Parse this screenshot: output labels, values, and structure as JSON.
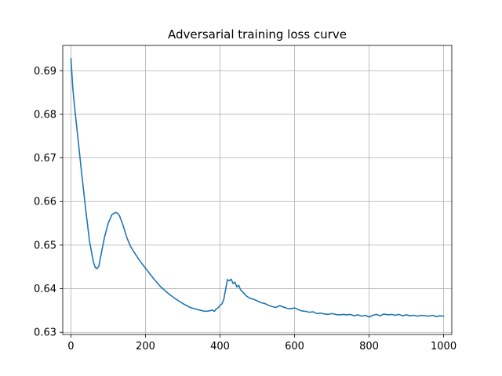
{
  "chart_data": {
    "type": "line",
    "title": "Adversarial training loss curve",
    "xlabel": "",
    "ylabel": "",
    "xlim": [
      -22,
      1022
    ],
    "ylim": [
      0.6295,
      0.6958
    ],
    "xticks": [
      0,
      200,
      400,
      600,
      800,
      1000
    ],
    "yticks": [
      0.63,
      0.64,
      0.65,
      0.66,
      0.67,
      0.68,
      0.69
    ],
    "xtick_labels": [
      "0",
      "200",
      "400",
      "600",
      "800",
      "1000"
    ],
    "ytick_labels": [
      "0.63",
      "0.64",
      "0.65",
      "0.66",
      "0.67",
      "0.68",
      "0.69"
    ],
    "grid": true,
    "series": [
      {
        "color": "#1f77b4",
        "x": [
          0,
          5,
          10,
          20,
          30,
          40,
          50,
          60,
          65,
          70,
          75,
          80,
          90,
          100,
          110,
          120,
          125,
          130,
          140,
          150,
          160,
          170,
          180,
          190,
          200,
          220,
          240,
          260,
          280,
          300,
          320,
          340,
          360,
          370,
          380,
          385,
          390,
          395,
          400,
          405,
          410,
          415,
          420,
          425,
          430,
          435,
          440,
          445,
          450,
          455,
          460,
          470,
          480,
          490,
          500,
          510,
          520,
          530,
          540,
          550,
          560,
          570,
          580,
          590,
          600,
          610,
          620,
          630,
          640,
          650,
          660,
          670,
          680,
          690,
          700,
          710,
          720,
          730,
          740,
          750,
          760,
          770,
          780,
          790,
          800,
          810,
          820,
          830,
          840,
          850,
          860,
          870,
          880,
          890,
          900,
          910,
          920,
          930,
          940,
          950,
          960,
          970,
          980,
          990,
          1000
        ],
        "y": [
          0.6928,
          0.686,
          0.6815,
          0.6735,
          0.6655,
          0.6578,
          0.6508,
          0.6462,
          0.6449,
          0.6446,
          0.6452,
          0.6475,
          0.6518,
          0.655,
          0.657,
          0.6575,
          0.6573,
          0.6568,
          0.6545,
          0.6517,
          0.6497,
          0.6483,
          0.647,
          0.6458,
          0.6447,
          0.6425,
          0.6405,
          0.639,
          0.6377,
          0.6366,
          0.6357,
          0.6352,
          0.6348,
          0.6349,
          0.6351,
          0.6348,
          0.6354,
          0.6356,
          0.6362,
          0.6365,
          0.6375,
          0.6398,
          0.6421,
          0.6418,
          0.6422,
          0.6412,
          0.6415,
          0.6404,
          0.6408,
          0.6398,
          0.6393,
          0.6384,
          0.6378,
          0.6376,
          0.6372,
          0.6368,
          0.6366,
          0.6362,
          0.6359,
          0.6357,
          0.6361,
          0.6358,
          0.6355,
          0.6354,
          0.6356,
          0.6352,
          0.6349,
          0.6348,
          0.6346,
          0.6347,
          0.6343,
          0.6344,
          0.6342,
          0.6341,
          0.6343,
          0.6341,
          0.634,
          0.6341,
          0.634,
          0.6341,
          0.6338,
          0.634,
          0.6337,
          0.6339,
          0.6335,
          0.6339,
          0.6341,
          0.6338,
          0.6342,
          0.634,
          0.6341,
          0.6339,
          0.6341,
          0.6338,
          0.634,
          0.6338,
          0.6339,
          0.6337,
          0.6339,
          0.6338,
          0.6337,
          0.6339,
          0.6336,
          0.6338,
          0.6337
        ]
      }
    ]
  }
}
